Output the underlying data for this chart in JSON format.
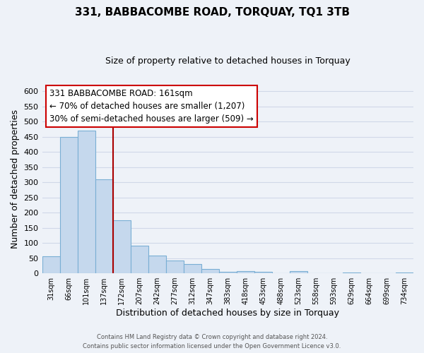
{
  "title": "331, BABBACOMBE ROAD, TORQUAY, TQ1 3TB",
  "subtitle": "Size of property relative to detached houses in Torquay",
  "xlabel": "Distribution of detached houses by size in Torquay",
  "ylabel": "Number of detached properties",
  "bar_labels": [
    "31sqm",
    "66sqm",
    "101sqm",
    "137sqm",
    "172sqm",
    "207sqm",
    "242sqm",
    "277sqm",
    "312sqm",
    "347sqm",
    "383sqm",
    "418sqm",
    "453sqm",
    "488sqm",
    "523sqm",
    "558sqm",
    "593sqm",
    "629sqm",
    "664sqm",
    "699sqm",
    "734sqm"
  ],
  "bar_heights": [
    55,
    450,
    470,
    310,
    175,
    90,
    58,
    42,
    30,
    15,
    6,
    8,
    5,
    1,
    8,
    1,
    0,
    2,
    0,
    0,
    2
  ],
  "bar_color": "#c5d8ed",
  "bar_edgecolor": "#7aafd4",
  "vline_color": "#aa0000",
  "ylim": [
    0,
    620
  ],
  "yticks": [
    0,
    50,
    100,
    150,
    200,
    250,
    300,
    350,
    400,
    450,
    500,
    550,
    600
  ],
  "annotation_title": "331 BABBACOMBE ROAD: 161sqm",
  "annotation_line1": "← 70% of detached houses are smaller (1,207)",
  "annotation_line2": "30% of semi-detached houses are larger (509) →",
  "annotation_box_color": "#cc0000",
  "footer_line1": "Contains HM Land Registry data © Crown copyright and database right 2024.",
  "footer_line2": "Contains public sector information licensed under the Open Government Licence v3.0.",
  "bg_color": "#eef2f8",
  "plot_bg_color": "#eef2f8",
  "grid_color": "#d0d8e8"
}
